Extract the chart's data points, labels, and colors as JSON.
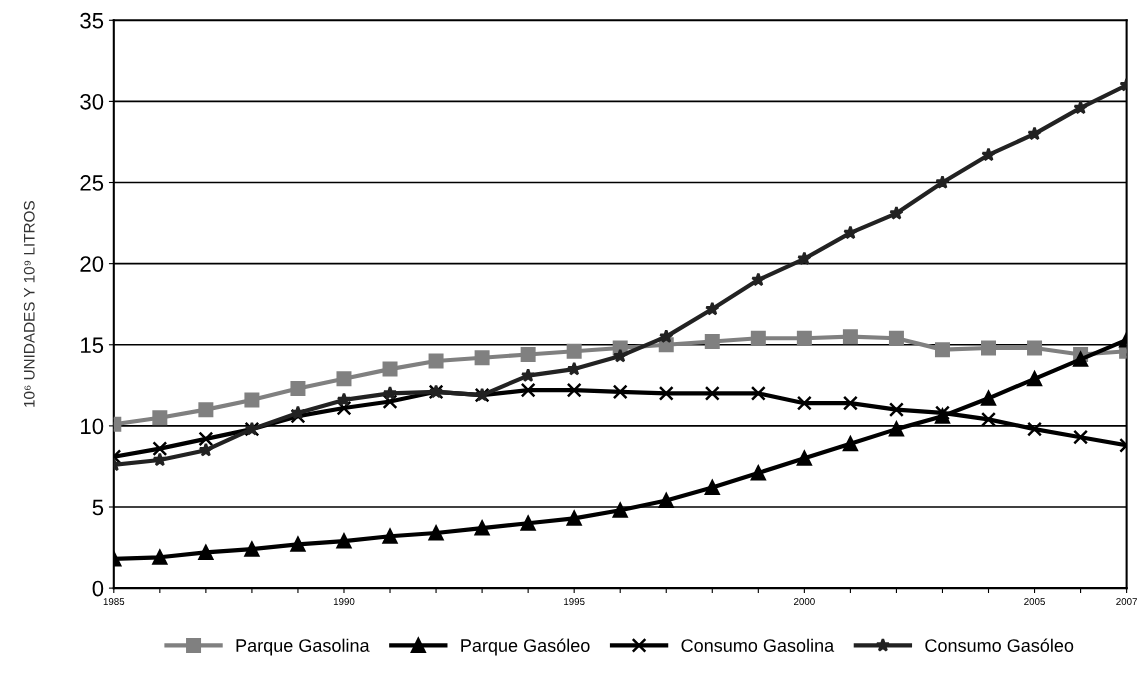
{
  "chart_data": {
    "type": "line",
    "ylabel": "10⁶ UNIDADES Y 10⁹ LITROS",
    "x": [
      1985,
      1986,
      1987,
      1988,
      1989,
      1990,
      1991,
      1992,
      1993,
      1994,
      1995,
      1996,
      1997,
      1998,
      1999,
      2000,
      2001,
      2002,
      2003,
      2004,
      2005,
      2006,
      2007
    ],
    "xlim": [
      1985,
      2007
    ],
    "xticks": [
      1985,
      {
        "value": 1986,
        "label": null
      },
      {
        "value": 1987,
        "label": null
      },
      {
        "value": 1988,
        "label": null
      },
      {
        "value": 1989,
        "label": null
      },
      1990,
      {
        "value": 1991,
        "label": null
      },
      {
        "value": 1992,
        "label": null
      },
      {
        "value": 1993,
        "label": null
      },
      {
        "value": 1994,
        "label": null
      },
      1995,
      {
        "value": 1996,
        "label": null
      },
      {
        "value": 1997,
        "label": null
      },
      {
        "value": 1998,
        "label": null
      },
      {
        "value": 1999,
        "label": null
      },
      2000,
      {
        "value": 2001,
        "label": null
      },
      {
        "value": 2002,
        "label": null
      },
      {
        "value": 2003,
        "label": null
      },
      {
        "value": 2004,
        "label": null
      },
      2005,
      {
        "value": 2006,
        "label": null
      },
      2007
    ],
    "ylim": [
      0,
      35
    ],
    "yticks": [
      0,
      5,
      10,
      15,
      20,
      25,
      30,
      35
    ],
    "grid": "y",
    "legend": "bottom",
    "series": [
      {
        "name": "Parque Gasolina",
        "color": "#808080",
        "marker": "square",
        "values": [
          10.1,
          10.5,
          11.0,
          11.6,
          12.3,
          12.9,
          13.5,
          14.0,
          14.2,
          14.4,
          14.6,
          14.8,
          15.0,
          15.2,
          15.4,
          15.4,
          15.5,
          15.4,
          14.7,
          14.8,
          14.8,
          14.4,
          14.6
        ]
      },
      {
        "name": "Parque Gasóleo",
        "color": "#000000",
        "marker": "triangle",
        "values": [
          1.8,
          1.9,
          2.2,
          2.4,
          2.7,
          2.9,
          3.2,
          3.4,
          3.7,
          4.0,
          4.3,
          4.8,
          5.4,
          6.2,
          7.1,
          8.0,
          8.9,
          9.8,
          10.6,
          11.7,
          12.9,
          14.1,
          15.3
        ]
      },
      {
        "name": "Consumo Gasolina",
        "color": "#000000",
        "marker": "cross",
        "values": [
          8.1,
          8.6,
          9.2,
          9.8,
          10.6,
          11.1,
          11.5,
          12.1,
          11.9,
          12.2,
          12.2,
          12.1,
          12.0,
          12.0,
          12.0,
          11.4,
          11.4,
          11.0,
          10.8,
          10.4,
          9.8,
          9.3,
          8.8
        ]
      },
      {
        "name": "Consumo Gasóleo",
        "color": "#222222",
        "marker": "star",
        "values": [
          7.6,
          7.9,
          8.5,
          9.8,
          10.8,
          11.6,
          12.0,
          12.1,
          11.9,
          13.1,
          13.5,
          14.3,
          15.5,
          17.2,
          19.0,
          20.3,
          21.9,
          23.1,
          25.0,
          26.7,
          28.0,
          29.6,
          31.0
        ]
      }
    ]
  }
}
